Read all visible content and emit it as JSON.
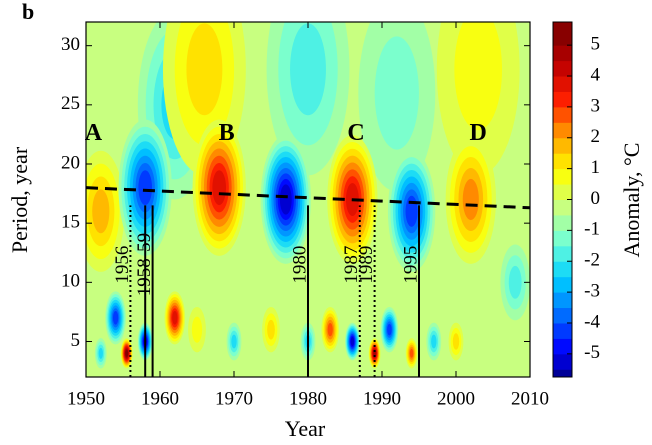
{
  "chart_data": {
    "type": "contour",
    "panel_label": "b",
    "xlabel": "Year",
    "ylabel": "Period, year",
    "colorbar_label": "Anomaly, °C",
    "xlim": [
      1950,
      2010
    ],
    "xticks": [
      1950,
      1960,
      1970,
      1980,
      1990,
      2000,
      2010
    ],
    "ylim": [
      2,
      32
    ],
    "yticks": [
      5,
      10,
      15,
      20,
      25,
      30
    ],
    "clim": [
      -5.75,
      5.75
    ],
    "cticks": [
      -5,
      -4,
      -3,
      -2,
      -1,
      0,
      1,
      2,
      3,
      4,
      5
    ],
    "colormap": [
      "#00007a",
      "#0000ff",
      "#0070ff",
      "#00d0ff",
      "#70ffd8",
      "#c8ff80",
      "#ffff00",
      "#ffa000",
      "#ff2000",
      "#c00000",
      "#780000"
    ],
    "features": [
      {
        "x": 1952,
        "y": 16,
        "value": 2
      },
      {
        "x": 1962,
        "y": 25,
        "value": -2
      },
      {
        "x": 1966,
        "y": 28,
        "value": 1.5
      },
      {
        "x": 1980,
        "y": 28,
        "value": -1.5
      },
      {
        "x": 1992,
        "y": 26,
        "value": -1
      },
      {
        "x": 2003,
        "y": 28,
        "value": 1
      },
      {
        "x": 2008,
        "y": 10,
        "value": -1.5
      },
      {
        "x": 1958,
        "y": 18,
        "value": -4
      },
      {
        "x": 1968,
        "y": 18,
        "value": 4
      },
      {
        "x": 1977,
        "y": 17,
        "value": -5
      },
      {
        "x": 1986,
        "y": 17,
        "value": 4
      },
      {
        "x": 1994,
        "y": 16,
        "value": -4
      },
      {
        "x": 2002,
        "y": 17,
        "value": 2.5
      },
      {
        "x": 1952,
        "y": 4,
        "value": -2
      },
      {
        "x": 1954,
        "y": 7,
        "value": -4
      },
      {
        "x": 1955.5,
        "y": 4,
        "value": 5.5
      },
      {
        "x": 1958,
        "y": 5,
        "value": -5
      },
      {
        "x": 1962,
        "y": 7,
        "value": 4
      },
      {
        "x": 1965,
        "y": 6,
        "value": 1
      },
      {
        "x": 1970,
        "y": 5,
        "value": -2
      },
      {
        "x": 1975,
        "y": 6,
        "value": 1.5
      },
      {
        "x": 1980,
        "y": 5,
        "value": -2
      },
      {
        "x": 1983,
        "y": 6,
        "value": 3
      },
      {
        "x": 1986,
        "y": 5,
        "value": -5
      },
      {
        "x": 1989,
        "y": 4,
        "value": 5
      },
      {
        "x": 1991,
        "y": 6,
        "value": -4
      },
      {
        "x": 1994,
        "y": 4,
        "value": 3
      },
      {
        "x": 1997,
        "y": 5,
        "value": -2
      },
      {
        "x": 2000,
        "y": 5,
        "value": 1.5
      }
    ],
    "trend_line": {
      "x": [
        1950,
        2010
      ],
      "y": [
        18,
        16.3
      ]
    },
    "events": [
      {
        "label": "1956",
        "years": [
          1956
        ],
        "style": "dotted"
      },
      {
        "label": "1958-59",
        "years": [
          1958,
          1959
        ],
        "style": "solid"
      },
      {
        "label": "1980",
        "years": [
          1980
        ],
        "style": "solid"
      },
      {
        "label": "1987",
        "years": [
          1987
        ],
        "style": "dotted"
      },
      {
        "label": "1989",
        "years": [
          1989
        ],
        "style": "dotted"
      },
      {
        "label": "1995",
        "years": [
          1995
        ],
        "style": "solid"
      }
    ],
    "annotations": [
      {
        "text": "A",
        "x": 1951,
        "y": 22.5
      },
      {
        "text": "B",
        "x": 1969,
        "y": 22.5
      },
      {
        "text": "C",
        "x": 1986.5,
        "y": 22.5
      },
      {
        "text": "D",
        "x": 2003,
        "y": 22.5
      }
    ]
  }
}
